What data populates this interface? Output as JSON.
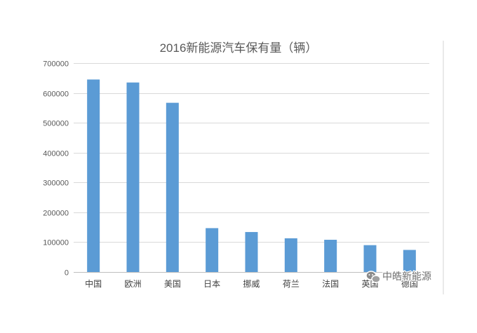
{
  "chart_data": {
    "type": "bar",
    "title": "2016新能源汽车保有量（辆）",
    "categories": [
      "中国",
      "欧洲",
      "美国",
      "日本",
      "挪威",
      "荷兰",
      "法国",
      "英国",
      "德国"
    ],
    "values": [
      645000,
      635000,
      567000,
      147000,
      134000,
      113000,
      108000,
      90000,
      74000
    ],
    "ylim": [
      0,
      700000
    ],
    "yticks": [
      0,
      100000,
      200000,
      300000,
      400000,
      500000,
      600000,
      700000
    ],
    "grid": true,
    "bar_color": "#5b9bd5"
  },
  "watermark": {
    "text": "中皓新能源",
    "icon": "wechat-icon"
  }
}
